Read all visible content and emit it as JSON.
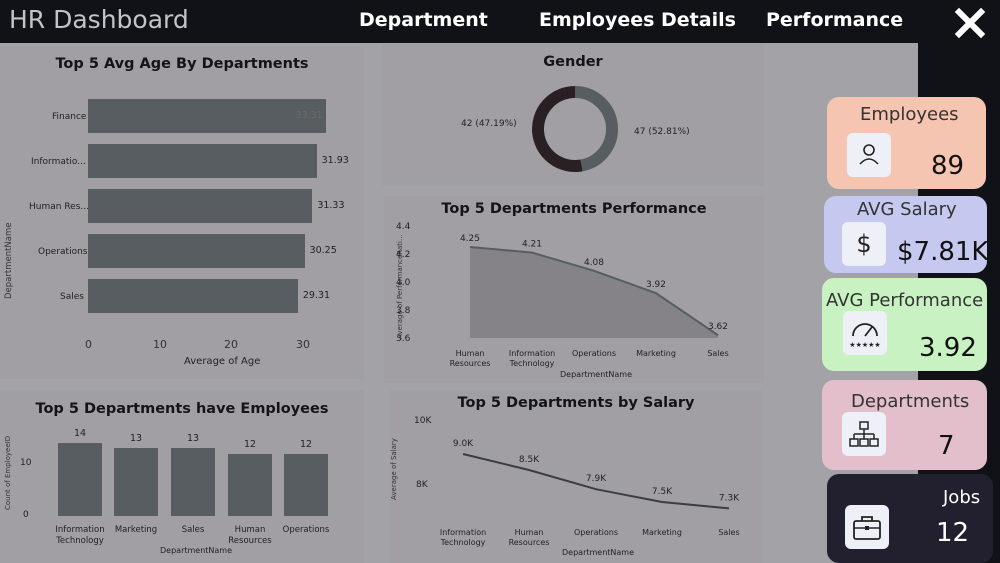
{
  "header": {
    "title": "HR Dashboard",
    "nav": [
      "Department",
      "Employees Details",
      "Performance"
    ]
  },
  "age_chart": {
    "title": "Top 5 Avg Age By Departments",
    "ylabel": "DepartmentName",
    "xlabel": "Average of Age",
    "ticks": [
      "0",
      "10",
      "20",
      "30"
    ]
  },
  "gender_chart": {
    "title": "Gender",
    "left_label": "42 (47.19%)",
    "right_label": "47 (52.81%)"
  },
  "perf_chart": {
    "title": "Top 5 Departments Performance",
    "ylabel": "Average of PerformanceRati...",
    "xlabel": "DepartmentName",
    "ticks": [
      "4.4",
      "4.2",
      "4.0",
      "3.8",
      "3.6"
    ]
  },
  "emp_chart": {
    "title": "Top 5 Departments have Employees",
    "ylabel": "Count of EmployeeID",
    "xlabel": "DepartmentName",
    "ticks": [
      "10",
      "0"
    ]
  },
  "salary_chart": {
    "title": "Top 5 Departments by Salary",
    "ylabel": "Average of Salary",
    "xlabel": "DepartmentName",
    "ticks": [
      "10K",
      "8K"
    ]
  },
  "chart_data": [
    {
      "type": "bar",
      "title": "Top 5 Avg Age By Departments",
      "orientation": "horizontal",
      "categories": [
        "Finance",
        "Informatio...",
        "Human Res...",
        "Operations",
        "Sales"
      ],
      "values": [
        33.31,
        31.93,
        31.33,
        30.25,
        29.31
      ],
      "value_labels": [
        "33.31",
        "31.93",
        "31.33",
        "30.25",
        "29.31"
      ],
      "xlabel": "Average of Age",
      "ylabel": "DepartmentName",
      "xlim": [
        0,
        35
      ]
    },
    {
      "type": "pie",
      "title": "Gender",
      "values": [
        42,
        47
      ],
      "labels": [
        "42 (47.19%)",
        "47 (52.81%)"
      ]
    },
    {
      "type": "area",
      "title": "Top 5 Departments Performance",
      "categories": [
        "Human Resources",
        "Information Technology",
        "Operations",
        "Marketing",
        "Sales"
      ],
      "values": [
        4.25,
        4.21,
        4.08,
        3.92,
        3.62
      ],
      "value_labels": [
        "4.25",
        "4.21",
        "4.08",
        "3.92",
        "3.62"
      ],
      "xlabel": "DepartmentName",
      "ylabel": "Average of PerformanceRati...",
      "ylim": [
        3.6,
        4.4
      ]
    },
    {
      "type": "bar",
      "title": "Top 5 Departments have Employees",
      "categories": [
        "Information Technology",
        "Marketing",
        "Sales",
        "Human Resources",
        "Operations"
      ],
      "values": [
        14,
        13,
        13,
        12,
        12
      ],
      "value_labels": [
        "14",
        "13",
        "13",
        "12",
        "12"
      ],
      "xlabel": "DepartmentName",
      "ylabel": "Count of EmployeeID",
      "ylim": [
        0,
        14
      ]
    },
    {
      "type": "line",
      "title": "Top 5 Departments by Salary",
      "categories": [
        "Information Technology",
        "Human Resources",
        "Operations",
        "Marketing",
        "Sales"
      ],
      "values": [
        9000,
        8500,
        7900,
        7500,
        7300
      ],
      "value_labels": [
        "9.0K",
        "8.5K",
        "7.9K",
        "7.5K",
        "7.3K"
      ],
      "xlabel": "DepartmentName",
      "ylabel": "Average of Salary",
      "ylim": [
        7000,
        10000
      ]
    }
  ],
  "kpis": [
    {
      "title": "Employees",
      "value": "89",
      "icon": "person-icon",
      "color": "#f6c5b1"
    },
    {
      "title": "AVG Salary",
      "value": "$7.81K",
      "icon": "dollar-icon",
      "color": "#c6c9ef"
    },
    {
      "title": "AVG Performance",
      "value": "3.92",
      "icon": "gauge-icon",
      "color": "#c8f2c2"
    },
    {
      "title": "Departments",
      "value": "7",
      "icon": "hierarchy-icon",
      "color": "#e2bfcb"
    },
    {
      "title": "Jobs",
      "value": "12",
      "icon": "briefcase-icon",
      "color": "#22202e"
    }
  ]
}
